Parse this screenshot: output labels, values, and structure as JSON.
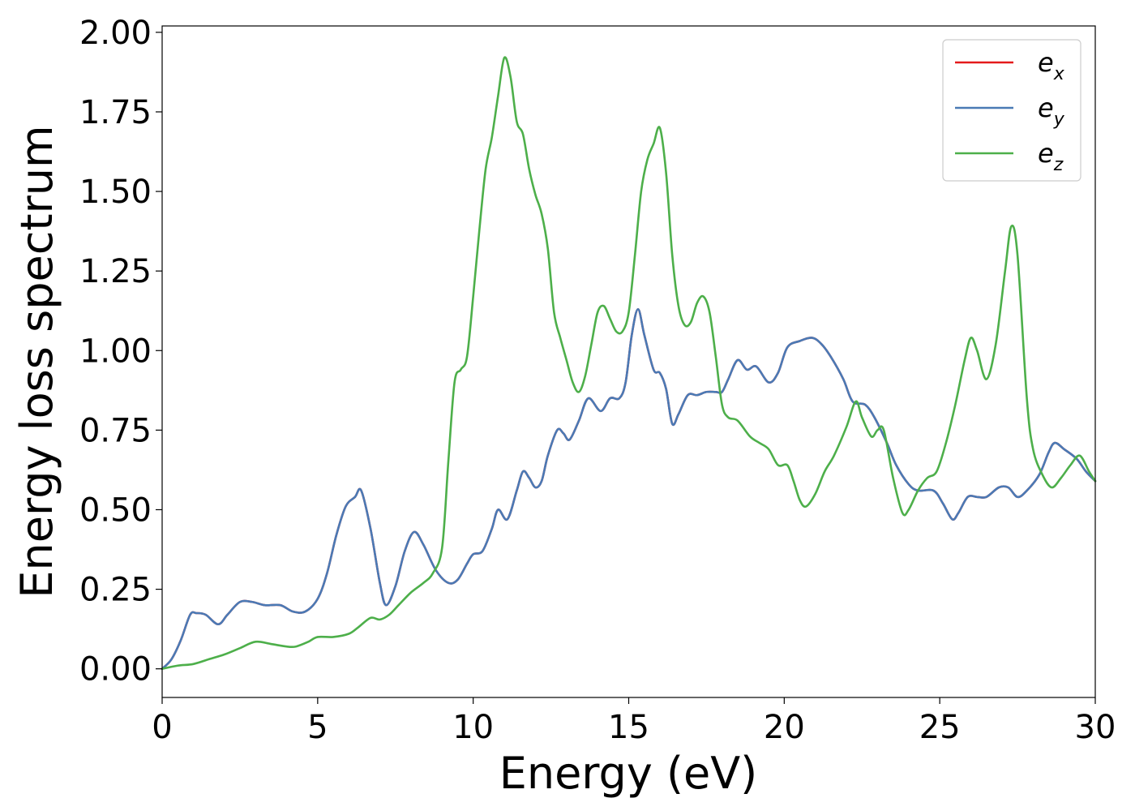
{
  "chart_data": {
    "type": "line",
    "xlabel": "Energy (eV)",
    "ylabel": "Energy loss spectrum",
    "xlim": [
      0,
      30
    ],
    "ylim": [
      -0.09,
      2.02
    ],
    "xticks": [
      0,
      5,
      10,
      15,
      20,
      25,
      30
    ],
    "xtick_labels": [
      "0",
      "5",
      "10",
      "15",
      "20",
      "25",
      "30"
    ],
    "yticks": [
      0.0,
      0.25,
      0.5,
      0.75,
      1.0,
      1.25,
      1.5,
      1.75,
      2.0
    ],
    "ytick_labels": [
      "0.00",
      "0.25",
      "0.50",
      "0.75",
      "1.00",
      "1.25",
      "1.50",
      "1.75",
      "2.00"
    ],
    "grid": false,
    "legend_position": "top-right",
    "series": [
      {
        "name": "e_x",
        "legend_base": "e",
        "legend_sub": "x",
        "color": "#e41a1c",
        "points": [
          [
            0,
            0.0
          ],
          [
            0.3,
            0.03
          ],
          [
            0.6,
            0.09
          ],
          [
            0.9,
            0.17
          ],
          [
            1.1,
            0.175
          ],
          [
            1.4,
            0.17
          ],
          [
            1.8,
            0.14
          ],
          [
            2.1,
            0.17
          ],
          [
            2.5,
            0.21
          ],
          [
            2.9,
            0.21
          ],
          [
            3.3,
            0.2
          ],
          [
            3.8,
            0.2
          ],
          [
            4.2,
            0.18
          ],
          [
            4.6,
            0.18
          ],
          [
            5.0,
            0.22
          ],
          [
            5.3,
            0.3
          ],
          [
            5.6,
            0.42
          ],
          [
            5.9,
            0.51
          ],
          [
            6.2,
            0.54
          ],
          [
            6.4,
            0.56
          ],
          [
            6.7,
            0.44
          ],
          [
            7.0,
            0.27
          ],
          [
            7.2,
            0.2
          ],
          [
            7.5,
            0.26
          ],
          [
            7.8,
            0.37
          ],
          [
            8.1,
            0.43
          ],
          [
            8.4,
            0.39
          ],
          [
            8.8,
            0.31
          ],
          [
            9.2,
            0.27
          ],
          [
            9.5,
            0.28
          ],
          [
            9.8,
            0.33
          ],
          [
            10.0,
            0.36
          ],
          [
            10.3,
            0.37
          ],
          [
            10.6,
            0.44
          ],
          [
            10.8,
            0.5
          ],
          [
            11.1,
            0.47
          ],
          [
            11.4,
            0.56
          ],
          [
            11.6,
            0.62
          ],
          [
            11.8,
            0.6
          ],
          [
            12.0,
            0.57
          ],
          [
            12.2,
            0.59
          ],
          [
            12.4,
            0.67
          ],
          [
            12.7,
            0.75
          ],
          [
            12.9,
            0.74
          ],
          [
            13.1,
            0.72
          ],
          [
            13.4,
            0.78
          ],
          [
            13.7,
            0.85
          ],
          [
            14.1,
            0.81
          ],
          [
            14.4,
            0.85
          ],
          [
            14.7,
            0.85
          ],
          [
            14.9,
            0.9
          ],
          [
            15.1,
            1.05
          ],
          [
            15.3,
            1.13
          ],
          [
            15.5,
            1.05
          ],
          [
            15.8,
            0.94
          ],
          [
            16.0,
            0.93
          ],
          [
            16.2,
            0.88
          ],
          [
            16.4,
            0.77
          ],
          [
            16.6,
            0.8
          ],
          [
            16.9,
            0.86
          ],
          [
            17.2,
            0.86
          ],
          [
            17.5,
            0.87
          ],
          [
            17.8,
            0.87
          ],
          [
            18.0,
            0.87
          ],
          [
            18.2,
            0.91
          ],
          [
            18.5,
            0.97
          ],
          [
            18.8,
            0.94
          ],
          [
            19.1,
            0.95
          ],
          [
            19.5,
            0.9
          ],
          [
            19.8,
            0.93
          ],
          [
            20.1,
            1.01
          ],
          [
            20.5,
            1.03
          ],
          [
            20.9,
            1.04
          ],
          [
            21.2,
            1.02
          ],
          [
            21.5,
            0.98
          ],
          [
            21.9,
            0.91
          ],
          [
            22.2,
            0.84
          ],
          [
            22.6,
            0.83
          ],
          [
            22.9,
            0.79
          ],
          [
            23.3,
            0.71
          ],
          [
            23.6,
            0.64
          ],
          [
            24.0,
            0.58
          ],
          [
            24.3,
            0.56
          ],
          [
            24.8,
            0.56
          ],
          [
            25.1,
            0.52
          ],
          [
            25.4,
            0.47
          ],
          [
            25.6,
            0.49
          ],
          [
            25.9,
            0.54
          ],
          [
            26.2,
            0.54
          ],
          [
            26.5,
            0.54
          ],
          [
            26.9,
            0.57
          ],
          [
            27.2,
            0.57
          ],
          [
            27.5,
            0.54
          ],
          [
            27.8,
            0.56
          ],
          [
            28.2,
            0.61
          ],
          [
            28.5,
            0.68
          ],
          [
            28.7,
            0.71
          ],
          [
            29.0,
            0.69
          ],
          [
            29.4,
            0.66
          ],
          [
            29.7,
            0.62
          ],
          [
            30.0,
            0.59
          ]
        ]
      },
      {
        "name": "e_y",
        "legend_base": "e",
        "legend_sub": "y",
        "color": "#4a7ab5",
        "points": [
          [
            0,
            0.0
          ],
          [
            0.3,
            0.03
          ],
          [
            0.6,
            0.09
          ],
          [
            0.9,
            0.17
          ],
          [
            1.1,
            0.175
          ],
          [
            1.4,
            0.17
          ],
          [
            1.8,
            0.14
          ],
          [
            2.1,
            0.17
          ],
          [
            2.5,
            0.21
          ],
          [
            2.9,
            0.21
          ],
          [
            3.3,
            0.2
          ],
          [
            3.8,
            0.2
          ],
          [
            4.2,
            0.18
          ],
          [
            4.6,
            0.18
          ],
          [
            5.0,
            0.22
          ],
          [
            5.3,
            0.3
          ],
          [
            5.6,
            0.42
          ],
          [
            5.9,
            0.51
          ],
          [
            6.2,
            0.54
          ],
          [
            6.4,
            0.56
          ],
          [
            6.7,
            0.44
          ],
          [
            7.0,
            0.27
          ],
          [
            7.2,
            0.2
          ],
          [
            7.5,
            0.26
          ],
          [
            7.8,
            0.37
          ],
          [
            8.1,
            0.43
          ],
          [
            8.4,
            0.39
          ],
          [
            8.8,
            0.31
          ],
          [
            9.2,
            0.27
          ],
          [
            9.5,
            0.28
          ],
          [
            9.8,
            0.33
          ],
          [
            10.0,
            0.36
          ],
          [
            10.3,
            0.37
          ],
          [
            10.6,
            0.44
          ],
          [
            10.8,
            0.5
          ],
          [
            11.1,
            0.47
          ],
          [
            11.4,
            0.56
          ],
          [
            11.6,
            0.62
          ],
          [
            11.8,
            0.6
          ],
          [
            12.0,
            0.57
          ],
          [
            12.2,
            0.59
          ],
          [
            12.4,
            0.67
          ],
          [
            12.7,
            0.75
          ],
          [
            12.9,
            0.74
          ],
          [
            13.1,
            0.72
          ],
          [
            13.4,
            0.78
          ],
          [
            13.7,
            0.85
          ],
          [
            14.1,
            0.81
          ],
          [
            14.4,
            0.85
          ],
          [
            14.7,
            0.85
          ],
          [
            14.9,
            0.9
          ],
          [
            15.1,
            1.05
          ],
          [
            15.3,
            1.13
          ],
          [
            15.5,
            1.05
          ],
          [
            15.8,
            0.94
          ],
          [
            16.0,
            0.93
          ],
          [
            16.2,
            0.88
          ],
          [
            16.4,
            0.77
          ],
          [
            16.6,
            0.8
          ],
          [
            16.9,
            0.86
          ],
          [
            17.2,
            0.86
          ],
          [
            17.5,
            0.87
          ],
          [
            17.8,
            0.87
          ],
          [
            18.0,
            0.87
          ],
          [
            18.2,
            0.91
          ],
          [
            18.5,
            0.97
          ],
          [
            18.8,
            0.94
          ],
          [
            19.1,
            0.95
          ],
          [
            19.5,
            0.9
          ],
          [
            19.8,
            0.93
          ],
          [
            20.1,
            1.01
          ],
          [
            20.5,
            1.03
          ],
          [
            20.9,
            1.04
          ],
          [
            21.2,
            1.02
          ],
          [
            21.5,
            0.98
          ],
          [
            21.9,
            0.91
          ],
          [
            22.2,
            0.84
          ],
          [
            22.6,
            0.83
          ],
          [
            22.9,
            0.79
          ],
          [
            23.3,
            0.71
          ],
          [
            23.6,
            0.64
          ],
          [
            24.0,
            0.58
          ],
          [
            24.3,
            0.56
          ],
          [
            24.8,
            0.56
          ],
          [
            25.1,
            0.52
          ],
          [
            25.4,
            0.47
          ],
          [
            25.6,
            0.49
          ],
          [
            25.9,
            0.54
          ],
          [
            26.2,
            0.54
          ],
          [
            26.5,
            0.54
          ],
          [
            26.9,
            0.57
          ],
          [
            27.2,
            0.57
          ],
          [
            27.5,
            0.54
          ],
          [
            27.8,
            0.56
          ],
          [
            28.2,
            0.61
          ],
          [
            28.5,
            0.68
          ],
          [
            28.7,
            0.71
          ],
          [
            29.0,
            0.69
          ],
          [
            29.4,
            0.66
          ],
          [
            29.7,
            0.62
          ],
          [
            30.0,
            0.59
          ]
        ]
      },
      {
        "name": "e_z",
        "legend_base": "e",
        "legend_sub": "z",
        "color": "#4daf4a",
        "points": [
          [
            0,
            0.0
          ],
          [
            0.5,
            0.01
          ],
          [
            1.0,
            0.015
          ],
          [
            1.5,
            0.03
          ],
          [
            2.0,
            0.045
          ],
          [
            2.5,
            0.065
          ],
          [
            3.0,
            0.085
          ],
          [
            3.5,
            0.078
          ],
          [
            4.0,
            0.07
          ],
          [
            4.3,
            0.07
          ],
          [
            4.7,
            0.085
          ],
          [
            5.0,
            0.1
          ],
          [
            5.5,
            0.1
          ],
          [
            6.0,
            0.11
          ],
          [
            6.3,
            0.13
          ],
          [
            6.7,
            0.16
          ],
          [
            7.0,
            0.155
          ],
          [
            7.3,
            0.17
          ],
          [
            7.6,
            0.2
          ],
          [
            8.0,
            0.24
          ],
          [
            8.4,
            0.27
          ],
          [
            8.7,
            0.3
          ],
          [
            9.0,
            0.38
          ],
          [
            9.2,
            0.65
          ],
          [
            9.4,
            0.9
          ],
          [
            9.6,
            0.94
          ],
          [
            9.8,
            0.98
          ],
          [
            10.0,
            1.17
          ],
          [
            10.2,
            1.38
          ],
          [
            10.4,
            1.57
          ],
          [
            10.6,
            1.67
          ],
          [
            10.8,
            1.8
          ],
          [
            11.0,
            1.92
          ],
          [
            11.2,
            1.86
          ],
          [
            11.4,
            1.72
          ],
          [
            11.6,
            1.68
          ],
          [
            11.8,
            1.57
          ],
          [
            12.0,
            1.49
          ],
          [
            12.2,
            1.43
          ],
          [
            12.4,
            1.32
          ],
          [
            12.6,
            1.12
          ],
          [
            12.8,
            1.04
          ],
          [
            13.0,
            0.97
          ],
          [
            13.2,
            0.9
          ],
          [
            13.4,
            0.87
          ],
          [
            13.6,
            0.92
          ],
          [
            13.8,
            1.02
          ],
          [
            14.0,
            1.12
          ],
          [
            14.2,
            1.14
          ],
          [
            14.4,
            1.1
          ],
          [
            14.6,
            1.06
          ],
          [
            14.8,
            1.06
          ],
          [
            15.0,
            1.12
          ],
          [
            15.2,
            1.3
          ],
          [
            15.4,
            1.5
          ],
          [
            15.6,
            1.6
          ],
          [
            15.8,
            1.65
          ],
          [
            16.0,
            1.7
          ],
          [
            16.2,
            1.56
          ],
          [
            16.4,
            1.3
          ],
          [
            16.6,
            1.14
          ],
          [
            16.8,
            1.08
          ],
          [
            17.0,
            1.09
          ],
          [
            17.2,
            1.15
          ],
          [
            17.4,
            1.17
          ],
          [
            17.6,
            1.12
          ],
          [
            17.8,
            0.98
          ],
          [
            18.0,
            0.83
          ],
          [
            18.2,
            0.79
          ],
          [
            18.5,
            0.78
          ],
          [
            18.9,
            0.73
          ],
          [
            19.2,
            0.71
          ],
          [
            19.5,
            0.69
          ],
          [
            19.8,
            0.64
          ],
          [
            20.1,
            0.64
          ],
          [
            20.3,
            0.59
          ],
          [
            20.5,
            0.53
          ],
          [
            20.7,
            0.51
          ],
          [
            21.0,
            0.55
          ],
          [
            21.3,
            0.62
          ],
          [
            21.6,
            0.67
          ],
          [
            22.0,
            0.76
          ],
          [
            22.3,
            0.84
          ],
          [
            22.5,
            0.79
          ],
          [
            22.8,
            0.73
          ],
          [
            23.0,
            0.75
          ],
          [
            23.2,
            0.75
          ],
          [
            23.5,
            0.6
          ],
          [
            23.8,
            0.49
          ],
          [
            24.0,
            0.5
          ],
          [
            24.3,
            0.56
          ],
          [
            24.6,
            0.6
          ],
          [
            24.9,
            0.62
          ],
          [
            25.2,
            0.71
          ],
          [
            25.5,
            0.83
          ],
          [
            25.8,
            0.97
          ],
          [
            26.0,
            1.04
          ],
          [
            26.2,
            1.0
          ],
          [
            26.5,
            0.91
          ],
          [
            26.8,
            1.02
          ],
          [
            27.1,
            1.25
          ],
          [
            27.3,
            1.39
          ],
          [
            27.5,
            1.3
          ],
          [
            27.8,
            0.85
          ],
          [
            28.0,
            0.69
          ],
          [
            28.3,
            0.61
          ],
          [
            28.6,
            0.57
          ],
          [
            28.9,
            0.6
          ],
          [
            29.2,
            0.64
          ],
          [
            29.5,
            0.67
          ],
          [
            29.8,
            0.62
          ],
          [
            30.0,
            0.59
          ]
        ]
      }
    ]
  }
}
